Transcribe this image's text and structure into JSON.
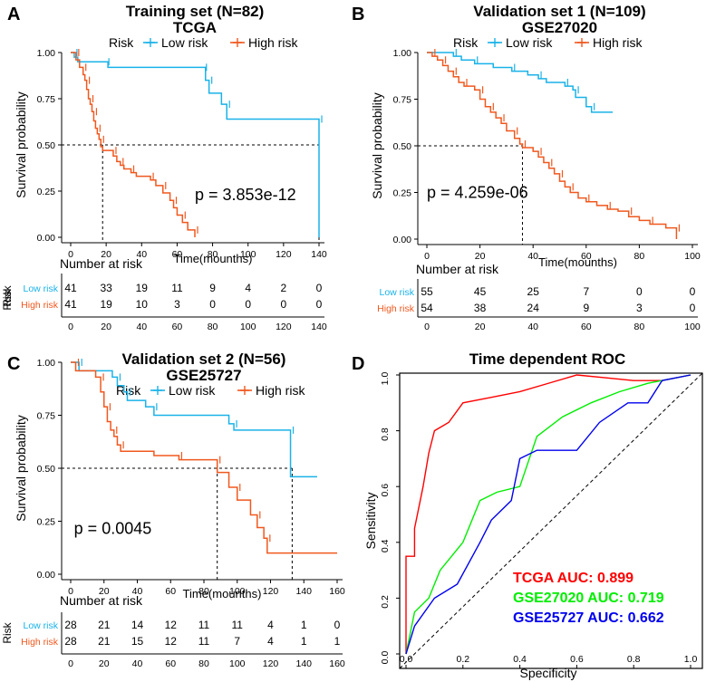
{
  "chart_data": [
    {
      "panel": "A",
      "type": "line",
      "title": "Training set (N=82)",
      "subtitle": "TCGA",
      "legend_title": "Risk",
      "legend": [
        "Low risk",
        "High risk"
      ],
      "xlabel": "Time(mounths)",
      "ylabel": "Survival probability",
      "xlim": [
        0,
        140
      ],
      "ylim": [
        0,
        1
      ],
      "xticks": [
        "0",
        "20",
        "40",
        "60",
        "80",
        "100",
        "120",
        "140"
      ],
      "yticks": [
        "0.00",
        "0.25",
        "0.50",
        "0.75",
        "1.00"
      ],
      "pvalue": "p = 3.853e-12",
      "median_lines": [
        18,
        140
      ],
      "colors": {
        "low": "#1AB2E8",
        "high": "#F0581E"
      },
      "series": [
        {
          "name": "Low risk",
          "steps": [
            [
              0,
              1
            ],
            [
              2,
              0.975
            ],
            [
              4,
              0.95
            ],
            [
              20,
              0.95
            ],
            [
              21,
              0.92
            ],
            [
              75,
              0.92
            ],
            [
              76,
              0.85
            ],
            [
              78,
              0.78
            ],
            [
              85,
              0.72
            ],
            [
              88,
              0.64
            ],
            [
              140,
              0.64
            ],
            [
              140,
              0.0
            ]
          ]
        },
        {
          "name": "High risk",
          "steps": [
            [
              0,
              1
            ],
            [
              3,
              0.96
            ],
            [
              5,
              0.92
            ],
            [
              7,
              0.88
            ],
            [
              8,
              0.85
            ],
            [
              9,
              0.8
            ],
            [
              10,
              0.75
            ],
            [
              11,
              0.72
            ],
            [
              12,
              0.68
            ],
            [
              13,
              0.63
            ],
            [
              14,
              0.59
            ],
            [
              15,
              0.56
            ],
            [
              16,
              0.53
            ],
            [
              17,
              0.49
            ],
            [
              18,
              0.47
            ],
            [
              24,
              0.44
            ],
            [
              26,
              0.41
            ],
            [
              28,
              0.39
            ],
            [
              30,
              0.37
            ],
            [
              34,
              0.35
            ],
            [
              37,
              0.33
            ],
            [
              45,
              0.31
            ],
            [
              48,
              0.28
            ],
            [
              52,
              0.24
            ],
            [
              56,
              0.2
            ],
            [
              58,
              0.16
            ],
            [
              60,
              0.12
            ],
            [
              63,
              0.08
            ],
            [
              66,
              0.04
            ],
            [
              70,
              0.0
            ]
          ]
        }
      ],
      "risk_table": {
        "heading": "Number at risk",
        "axis_label": "Risk",
        "row_labels": [
          "Low risk",
          "High risk"
        ],
        "times": [
          0,
          20,
          40,
          60,
          80,
          100,
          120,
          140
        ],
        "low": [
          "41",
          "33",
          "19",
          "11",
          "9",
          "4",
          "2",
          "0"
        ],
        "high": [
          "41",
          "19",
          "10",
          "3",
          "0",
          "0",
          "0",
          "0"
        ]
      }
    },
    {
      "panel": "B",
      "type": "line",
      "title": "Validation set 1 (N=109)",
      "subtitle": "GSE27020",
      "legend_title": "Risk",
      "legend": [
        "Low risk",
        "High risk"
      ],
      "xlabel": "Time(mounths)",
      "ylabel": "Survival probability",
      "xlim": [
        0,
        100
      ],
      "ylim": [
        0,
        1
      ],
      "xticks": [
        "0",
        "20",
        "40",
        "60",
        "80",
        "100"
      ],
      "yticks": [
        "0.00",
        "0.25",
        "0.50",
        "0.75",
        "1.00"
      ],
      "pvalue": "p = 4.259e-06",
      "median_lines": [
        36
      ],
      "colors": {
        "low": "#1AB2E8",
        "high": "#F0581E"
      },
      "series": [
        {
          "name": "Low risk",
          "steps": [
            [
              0,
              1
            ],
            [
              10,
              0.98
            ],
            [
              13,
              0.96
            ],
            [
              18,
              0.94
            ],
            [
              25,
              0.92
            ],
            [
              32,
              0.9
            ],
            [
              38,
              0.88
            ],
            [
              42,
              0.86
            ],
            [
              45,
              0.84
            ],
            [
              52,
              0.82
            ],
            [
              55,
              0.8
            ],
            [
              56,
              0.76
            ],
            [
              60,
              0.71
            ],
            [
              62,
              0.68
            ],
            [
              70,
              0.68
            ]
          ]
        },
        {
          "name": "High risk",
          "steps": [
            [
              0,
              1
            ],
            [
              2,
              0.98
            ],
            [
              4,
              0.96
            ],
            [
              6,
              0.93
            ],
            [
              8,
              0.9
            ],
            [
              10,
              0.87
            ],
            [
              12,
              0.84
            ],
            [
              14,
              0.82
            ],
            [
              18,
              0.8
            ],
            [
              20,
              0.75
            ],
            [
              22,
              0.71
            ],
            [
              24,
              0.68
            ],
            [
              26,
              0.65
            ],
            [
              28,
              0.62
            ],
            [
              30,
              0.58
            ],
            [
              33,
              0.54
            ],
            [
              35,
              0.51
            ],
            [
              36,
              0.49
            ],
            [
              40,
              0.47
            ],
            [
              42,
              0.44
            ],
            [
              44,
              0.41
            ],
            [
              46,
              0.38
            ],
            [
              48,
              0.35
            ],
            [
              50,
              0.31
            ],
            [
              52,
              0.28
            ],
            [
              54,
              0.25
            ],
            [
              57,
              0.22
            ],
            [
              60,
              0.2
            ],
            [
              64,
              0.18
            ],
            [
              68,
              0.16
            ],
            [
              72,
              0.15
            ],
            [
              76,
              0.12
            ],
            [
              80,
              0.1
            ],
            [
              84,
              0.08
            ],
            [
              90,
              0.06
            ],
            [
              94,
              0.0
            ]
          ]
        }
      ],
      "risk_table": {
        "heading": "Number at risk",
        "axis_label": "Risk",
        "row_labels": [
          "Low risk",
          "High risk"
        ],
        "times": [
          0,
          20,
          40,
          60,
          80,
          100
        ],
        "low": [
          "55",
          "45",
          "25",
          "7",
          "0",
          "0"
        ],
        "high": [
          "54",
          "38",
          "24",
          "9",
          "3",
          "0"
        ]
      }
    },
    {
      "panel": "C",
      "type": "line",
      "title": "Validation set 2 (N=56)",
      "subtitle": "GSE25727",
      "legend_title": "Risk",
      "legend": [
        "Low risk",
        "High risk"
      ],
      "xlabel": "Time(mounths)",
      "ylabel": "Survival probability",
      "xlim": [
        0,
        160
      ],
      "ylim": [
        0,
        1
      ],
      "xticks": [
        "0",
        "20",
        "40",
        "60",
        "80",
        "100",
        "120",
        "140",
        "160"
      ],
      "yticks": [
        "0.00",
        "0.25",
        "0.50",
        "0.75",
        "1.00"
      ],
      "pvalue": "p = 0.0045",
      "median_lines": [
        88,
        133
      ],
      "colors": {
        "low": "#1AB2E8",
        "high": "#F0581E"
      },
      "series": [
        {
          "name": "Low risk",
          "steps": [
            [
              0,
              1
            ],
            [
              5,
              0.96
            ],
            [
              25,
              0.93
            ],
            [
              28,
              0.89
            ],
            [
              32,
              0.86
            ],
            [
              34,
              0.82
            ],
            [
              45,
              0.79
            ],
            [
              50,
              0.75
            ],
            [
              95,
              0.71
            ],
            [
              98,
              0.68
            ],
            [
              130,
              0.68
            ],
            [
              132,
              0.46
            ],
            [
              148,
              0.46
            ]
          ]
        },
        {
          "name": "High risk",
          "steps": [
            [
              0,
              1
            ],
            [
              3,
              0.96
            ],
            [
              15,
              0.93
            ],
            [
              18,
              0.86
            ],
            [
              20,
              0.79
            ],
            [
              22,
              0.72
            ],
            [
              24,
              0.68
            ],
            [
              26,
              0.65
            ],
            [
              28,
              0.61
            ],
            [
              30,
              0.58
            ],
            [
              50,
              0.56
            ],
            [
              65,
              0.54
            ],
            [
              86,
              0.54
            ],
            [
              88,
              0.48
            ],
            [
              95,
              0.41
            ],
            [
              100,
              0.35
            ],
            [
              108,
              0.28
            ],
            [
              112,
              0.22
            ],
            [
              116,
              0.17
            ],
            [
              118,
              0.1
            ],
            [
              160,
              0.1
            ]
          ]
        }
      ],
      "risk_table": {
        "heading": "Number at risk",
        "axis_label": "Risk",
        "row_labels": [
          "Low risk",
          "High risk"
        ],
        "times": [
          0,
          20,
          40,
          60,
          80,
          100,
          120,
          140,
          160
        ],
        "low": [
          "28",
          "21",
          "14",
          "12",
          "11",
          "11",
          "4",
          "1",
          "0"
        ],
        "high": [
          "28",
          "21",
          "15",
          "12",
          "11",
          "7",
          "4",
          "1",
          "1"
        ]
      }
    },
    {
      "panel": "D",
      "type": "line",
      "title": "Time dependent ROC",
      "xlabel": "Specificity",
      "ylabel": "Sensitivity",
      "xlim": [
        0,
        1
      ],
      "ylim": [
        0,
        1
      ],
      "xticks": [
        "0.0",
        "0.2",
        "0.4",
        "0.6",
        "0.8",
        "1.0"
      ],
      "yticks": [
        "0.0",
        "0.2",
        "0.4",
        "0.6",
        "0.8",
        "1.0"
      ],
      "series": [
        {
          "name": "TCGA AUC: 0.899",
          "color": "#FF0000",
          "points": [
            [
              0.0,
              0.0
            ],
            [
              0.0,
              0.35
            ],
            [
              0.03,
              0.35
            ],
            [
              0.03,
              0.45
            ],
            [
              0.06,
              0.6
            ],
            [
              0.08,
              0.72
            ],
            [
              0.1,
              0.8
            ],
            [
              0.15,
              0.83
            ],
            [
              0.2,
              0.9
            ],
            [
              0.3,
              0.92
            ],
            [
              0.4,
              0.94
            ],
            [
              0.5,
              0.97
            ],
            [
              0.6,
              1.0
            ],
            [
              0.7,
              0.99
            ],
            [
              0.8,
              0.98
            ],
            [
              0.9,
              0.98
            ],
            [
              1.0,
              1.0
            ]
          ]
        },
        {
          "name": "GSE27020 AUC: 0.719",
          "color": "#00EE00",
          "points": [
            [
              0.0,
              0.0
            ],
            [
              0.03,
              0.15
            ],
            [
              0.08,
              0.2
            ],
            [
              0.12,
              0.3
            ],
            [
              0.2,
              0.4
            ],
            [
              0.26,
              0.55
            ],
            [
              0.32,
              0.58
            ],
            [
              0.4,
              0.6
            ],
            [
              0.46,
              0.78
            ],
            [
              0.55,
              0.85
            ],
            [
              0.65,
              0.9
            ],
            [
              0.75,
              0.94
            ],
            [
              0.85,
              0.97
            ],
            [
              1.0,
              1.0
            ]
          ]
        },
        {
          "name": "GSE25727 AUC: 0.662",
          "color": "#0000EE",
          "points": [
            [
              0.0,
              0.0
            ],
            [
              0.03,
              0.1
            ],
            [
              0.1,
              0.2
            ],
            [
              0.18,
              0.25
            ],
            [
              0.26,
              0.4
            ],
            [
              0.3,
              0.48
            ],
            [
              0.37,
              0.55
            ],
            [
              0.4,
              0.7
            ],
            [
              0.46,
              0.73
            ],
            [
              0.6,
              0.73
            ],
            [
              0.68,
              0.83
            ],
            [
              0.78,
              0.9
            ],
            [
              0.85,
              0.9
            ],
            [
              0.9,
              0.98
            ],
            [
              1.0,
              1.0
            ]
          ]
        }
      ]
    }
  ]
}
